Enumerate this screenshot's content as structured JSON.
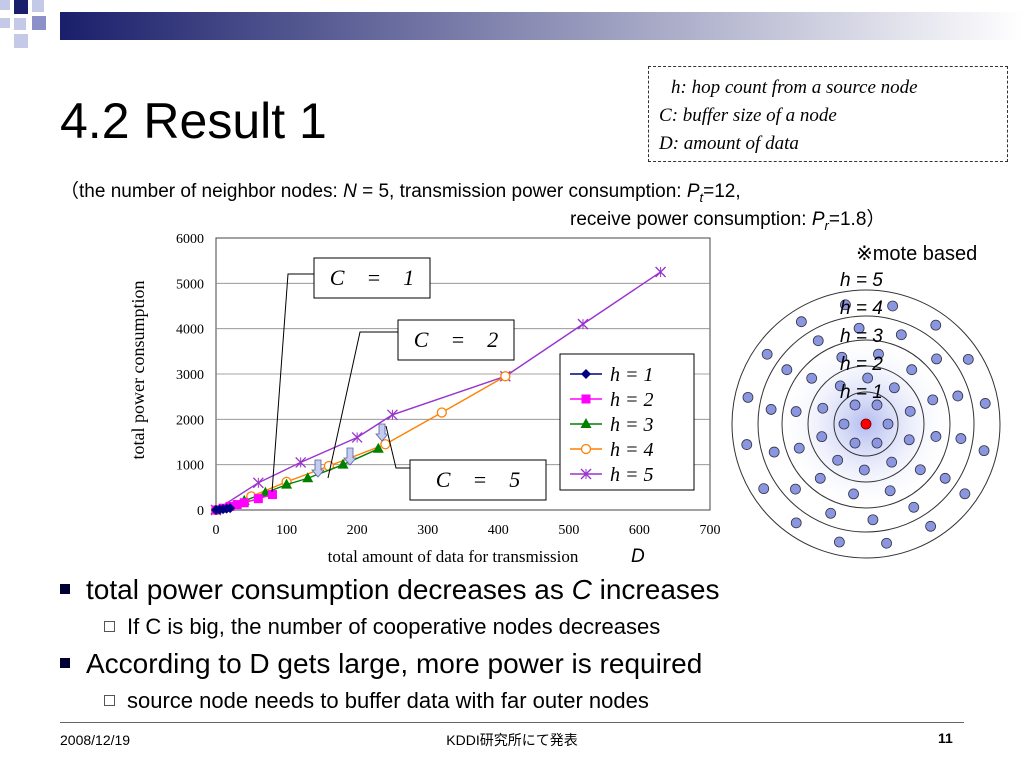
{
  "slide": {
    "title": "4.2 Result 1",
    "definitions": [
      {
        "sym": "h",
        "text": ": hop count  from a  source node"
      },
      {
        "sym": "C",
        "text": ": buffer size of  a node"
      },
      {
        "sym": "D",
        "text": ": amount of  data"
      }
    ],
    "params": {
      "line1_prefix": "（the number of neighbor nodes: ",
      "N": "N",
      "line1_mid": " = 5,  transmission power consumption: ",
      "Pt": "P",
      "Pt_sub": "t",
      "line1_suffix": "=12,",
      "line2_prefix": "receive power consumption: ",
      "Pr": "P",
      "Pr_sub": "r",
      "line2_suffix": "=1.8）"
    },
    "bullets": [
      {
        "level": 1,
        "pre": "total power consumption decreases as ",
        "em": "C",
        "post": " increases"
      },
      {
        "level": 2,
        "text": "If C is big, the number of cooperative nodes decreases"
      },
      {
        "level": 1,
        "text": "According to D gets large, more power is required"
      },
      {
        "level": 2,
        "text": "source node needs to buffer data with far outer nodes"
      }
    ],
    "footer": {
      "date": "2008/12/19",
      "center": "KDDI研究所にて発表",
      "page": "11"
    }
  },
  "diagram": {
    "note": "※mote based",
    "ring_labels": [
      "h = 5",
      "h = 4",
      "h = 3",
      "h = 2",
      "h = 1"
    ],
    "node_color": "#8b96e0",
    "source_color": "#ff0000"
  },
  "chart_data": {
    "type": "line",
    "xlabel": "total amount of data for transmission",
    "xlabel_sym": "D",
    "ylabel": "total power consumption",
    "xlim": [
      0,
      700
    ],
    "ylim": [
      0,
      6000
    ],
    "x_ticks": [
      0,
      100,
      200,
      300,
      400,
      500,
      600,
      700
    ],
    "y_ticks": [
      0,
      1000,
      2000,
      3000,
      4000,
      5000,
      6000
    ],
    "legend_position": "right",
    "series": [
      {
        "name": "h = 1",
        "color": "#000080",
        "marker": "diamond",
        "x": [
          0,
          5,
          10,
          15,
          20
        ],
        "y": [
          0,
          10,
          20,
          30,
          40
        ]
      },
      {
        "name": "h = 2",
        "color": "#ff00ff",
        "marker": "square",
        "x": [
          0,
          10,
          20,
          30,
          40,
          60,
          80
        ],
        "y": [
          0,
          40,
          80,
          120,
          160,
          250,
          340
        ]
      },
      {
        "name": "h = 3",
        "color": "#008000",
        "marker": "triangle",
        "x": [
          0,
          40,
          70,
          100,
          130,
          180,
          230
        ],
        "y": [
          0,
          200,
          380,
          560,
          700,
          1000,
          1350
        ]
      },
      {
        "name": "h = 4",
        "color": "#ff8000",
        "marker": "circle",
        "x": [
          0,
          50,
          100,
          160,
          240,
          320,
          410
        ],
        "y": [
          0,
          300,
          620,
          970,
          1450,
          2150,
          2950
        ]
      },
      {
        "name": "h = 5",
        "color": "#9933cc",
        "marker": "x",
        "x": [
          0,
          60,
          120,
          200,
          250,
          410,
          520,
          630
        ],
        "y": [
          0,
          600,
          1050,
          1600,
          2100,
          2950,
          4100,
          5250
        ]
      }
    ],
    "annotations": [
      {
        "text": "C　=　1"
      },
      {
        "text": "C　=　2"
      },
      {
        "text": "C　=　5"
      }
    ]
  }
}
